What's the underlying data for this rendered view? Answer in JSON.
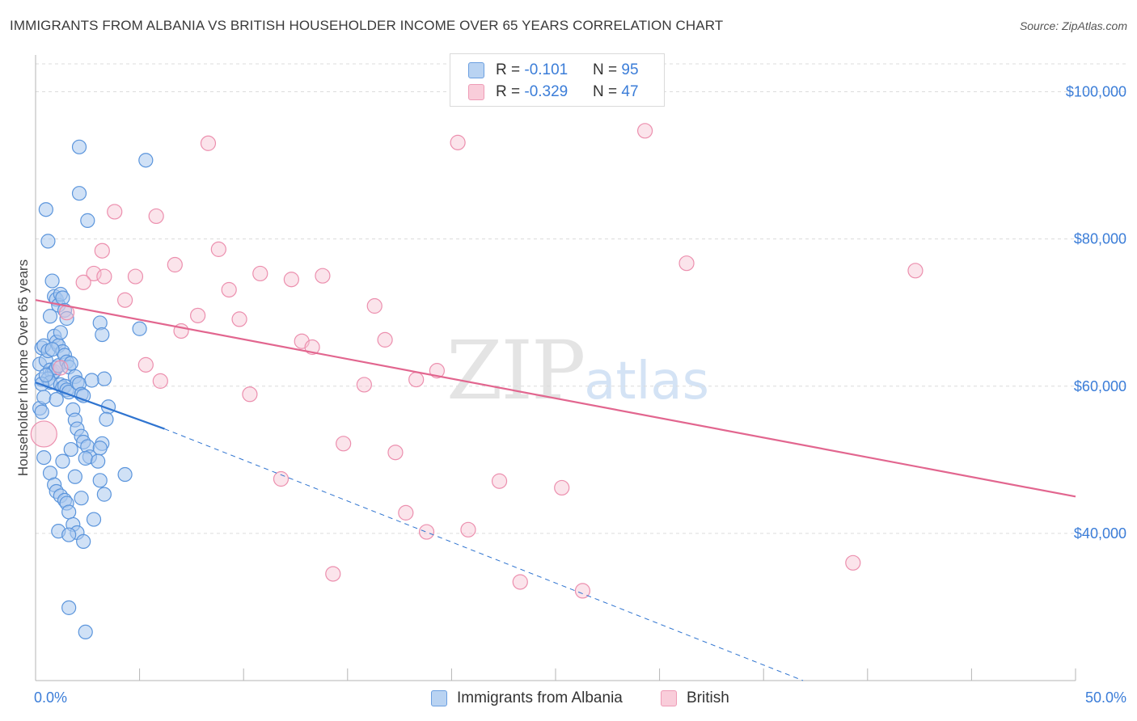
{
  "title": "IMMIGRANTS FROM ALBANIA VS BRITISH HOUSEHOLDER INCOME OVER 65 YEARS CORRELATION CHART",
  "source": "Source: ZipAtlas.com",
  "watermark": {
    "zip": "ZIP",
    "atlas": "atlas"
  },
  "legend": {
    "rows": [
      {
        "r_label": "R = ",
        "r_value": "-0.101",
        "n_label": "N = ",
        "n_value": "95"
      },
      {
        "r_label": "R = ",
        "r_value": "-0.329",
        "n_label": "N = ",
        "n_value": "47"
      }
    ]
  },
  "bottom_legend": {
    "albania": "Immigrants from Albania",
    "british": "British"
  },
  "colors": {
    "albania_fill": "#a9c8ef",
    "albania_stroke": "#5b95dc",
    "albania_line": "#2f74d0",
    "british_fill": "#f7c3d3",
    "british_stroke": "#ec8fae",
    "british_line": "#e2668f",
    "tick": "#3b7dd8"
  },
  "chart_data": {
    "type": "scatter",
    "title": "IMMIGRANTS FROM ALBANIA VS BRITISH HOUSEHOLDER INCOME OVER 65 YEARS CORRELATION CHART",
    "xlabel": "",
    "ylabel": "Householder Income Over 65 years",
    "xlim": [
      0,
      50
    ],
    "ylim": [
      20000,
      105000
    ],
    "x_tick_labels": [
      "0.0%",
      "50.0%"
    ],
    "y_ticks": [
      40000,
      60000,
      80000,
      100000
    ],
    "y_tick_labels": [
      "$40,000",
      "$60,000",
      "$80,000",
      "$100,000"
    ],
    "grid": true,
    "legend_position": "top-center",
    "series": [
      {
        "name": "Immigrants from Albania",
        "points": [
          [
            0.2,
            63000
          ],
          [
            0.3,
            60900
          ],
          [
            0.2,
            57000
          ],
          [
            0.4,
            58500
          ],
          [
            0.3,
            56500
          ],
          [
            0.3,
            65200
          ],
          [
            0.4,
            65500
          ],
          [
            0.5,
            63500
          ],
          [
            0.6,
            64800
          ],
          [
            0.7,
            62200
          ],
          [
            0.8,
            61800
          ],
          [
            0.9,
            62000
          ],
          [
            1.0,
            62500
          ],
          [
            0.6,
            61000
          ],
          [
            0.7,
            60500
          ],
          [
            1.1,
            62800
          ],
          [
            1.2,
            60200
          ],
          [
            1.3,
            59800
          ],
          [
            1.4,
            60000
          ],
          [
            1.5,
            59500
          ],
          [
            1.6,
            59200
          ],
          [
            0.5,
            84000
          ],
          [
            0.6,
            79700
          ],
          [
            0.8,
            74300
          ],
          [
            0.9,
            72200
          ],
          [
            1.0,
            71800
          ],
          [
            1.1,
            71000
          ],
          [
            1.2,
            72500
          ],
          [
            1.3,
            72000
          ],
          [
            1.4,
            70300
          ],
          [
            1.5,
            69200
          ],
          [
            0.7,
            69500
          ],
          [
            0.9,
            66800
          ],
          [
            1.0,
            66000
          ],
          [
            1.1,
            65500
          ],
          [
            1.2,
            67300
          ],
          [
            1.3,
            64700
          ],
          [
            1.4,
            64200
          ],
          [
            1.5,
            63300
          ],
          [
            1.6,
            62600
          ],
          [
            1.7,
            63100
          ],
          [
            1.9,
            61300
          ],
          [
            2.0,
            60500
          ],
          [
            2.1,
            60300
          ],
          [
            2.2,
            58900
          ],
          [
            2.3,
            58700
          ],
          [
            1.8,
            56800
          ],
          [
            1.9,
            55400
          ],
          [
            2.0,
            54200
          ],
          [
            2.2,
            53200
          ],
          [
            2.3,
            52400
          ],
          [
            2.5,
            51800
          ],
          [
            2.6,
            50400
          ],
          [
            2.4,
            50200
          ],
          [
            0.4,
            50300
          ],
          [
            0.7,
            48200
          ],
          [
            0.9,
            46600
          ],
          [
            1.0,
            45700
          ],
          [
            1.2,
            45100
          ],
          [
            1.4,
            44500
          ],
          [
            1.5,
            44100
          ],
          [
            1.6,
            42900
          ],
          [
            1.8,
            41200
          ],
          [
            2.0,
            40100
          ],
          [
            1.1,
            40300
          ],
          [
            1.6,
            39800
          ],
          [
            2.3,
            38900
          ],
          [
            2.1,
            92500
          ],
          [
            5.3,
            90700
          ],
          [
            2.1,
            86200
          ],
          [
            2.5,
            82500
          ],
          [
            3.1,
            68600
          ],
          [
            3.2,
            67000
          ],
          [
            3.3,
            61000
          ],
          [
            3.5,
            57200
          ],
          [
            3.4,
            55500
          ],
          [
            3.2,
            52200
          ],
          [
            3.1,
            51600
          ],
          [
            3.0,
            49800
          ],
          [
            3.1,
            47200
          ],
          [
            3.3,
            45300
          ],
          [
            4.3,
            48000
          ],
          [
            5.0,
            67800
          ],
          [
            2.8,
            41900
          ],
          [
            1.6,
            29900
          ],
          [
            2.4,
            26600
          ],
          [
            0.3,
            60300
          ],
          [
            0.5,
            61500
          ],
          [
            0.8,
            65000
          ],
          [
            1.0,
            58200
          ],
          [
            1.3,
            49800
          ],
          [
            1.7,
            51400
          ],
          [
            2.7,
            60800
          ],
          [
            1.9,
            47700
          ],
          [
            2.2,
            44800
          ]
        ]
      },
      {
        "name": "British",
        "points": [
          [
            0.4,
            53500
          ],
          [
            1.2,
            62500
          ],
          [
            1.5,
            70000
          ],
          [
            2.8,
            75300
          ],
          [
            2.3,
            74100
          ],
          [
            3.2,
            78400
          ],
          [
            3.3,
            74900
          ],
          [
            3.8,
            83700
          ],
          [
            4.3,
            71700
          ],
          [
            4.8,
            74900
          ],
          [
            5.3,
            62900
          ],
          [
            5.8,
            83100
          ],
          [
            6.0,
            60700
          ],
          [
            6.7,
            76500
          ],
          [
            7.0,
            67500
          ],
          [
            7.8,
            69600
          ],
          [
            8.3,
            93000
          ],
          [
            8.8,
            78600
          ],
          [
            9.3,
            73100
          ],
          [
            9.8,
            69100
          ],
          [
            10.3,
            58900
          ],
          [
            10.8,
            75300
          ],
          [
            11.8,
            47400
          ],
          [
            12.3,
            74500
          ],
          [
            12.8,
            66100
          ],
          [
            13.3,
            65300
          ],
          [
            13.8,
            75000
          ],
          [
            14.3,
            34500
          ],
          [
            14.8,
            52200
          ],
          [
            15.8,
            60200
          ],
          [
            16.3,
            70900
          ],
          [
            16.8,
            66300
          ],
          [
            17.3,
            51000
          ],
          [
            17.8,
            42800
          ],
          [
            18.3,
            60900
          ],
          [
            18.8,
            40200
          ],
          [
            19.3,
            62100
          ],
          [
            20.3,
            93100
          ],
          [
            20.8,
            40500
          ],
          [
            22.3,
            47100
          ],
          [
            23.3,
            33400
          ],
          [
            25.3,
            46200
          ],
          [
            26.3,
            32200
          ],
          [
            29.3,
            94700
          ],
          [
            31.3,
            76700
          ],
          [
            39.3,
            36000
          ],
          [
            42.3,
            75700
          ]
        ]
      }
    ],
    "trend_lines": [
      {
        "name": "Immigrants from Albania",
        "solid": [
          [
            0,
            60500
          ],
          [
            6.2,
            54200
          ]
        ],
        "dashed": [
          [
            6.2,
            54200
          ],
          [
            36.9,
            20000
          ]
        ]
      },
      {
        "name": "British",
        "solid": [
          [
            0,
            71700
          ],
          [
            50,
            45000
          ]
        ]
      }
    ]
  }
}
